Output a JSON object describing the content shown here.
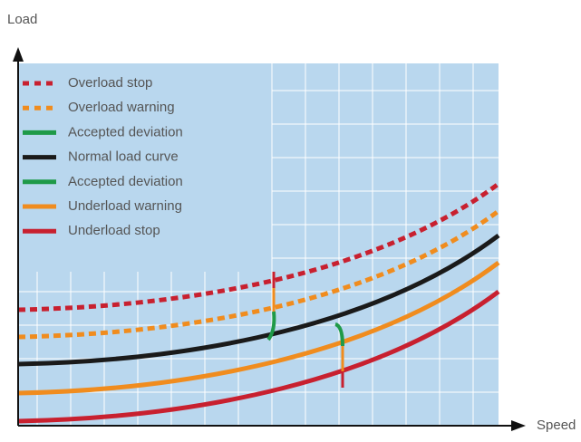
{
  "axes": {
    "y_label": "Load",
    "x_label": "Speed"
  },
  "legend": [
    {
      "label": "Overload stop",
      "color": "#c8202f",
      "style": "dotted"
    },
    {
      "label": "Overload warning",
      "color": "#f08c1e",
      "style": "dotted"
    },
    {
      "label": "Accepted deviation",
      "color": "#1f9a48",
      "style": "solid"
    },
    {
      "label": "Normal load curve",
      "color": "#1a1a1a",
      "style": "solid"
    },
    {
      "label": "Accepted deviation",
      "color": "#1f9a48",
      "style": "solid"
    },
    {
      "label": "Underload warning",
      "color": "#f08c1e",
      "style": "solid"
    },
    {
      "label": "Underload stop",
      "color": "#c8202f",
      "style": "solid"
    }
  ]
}
